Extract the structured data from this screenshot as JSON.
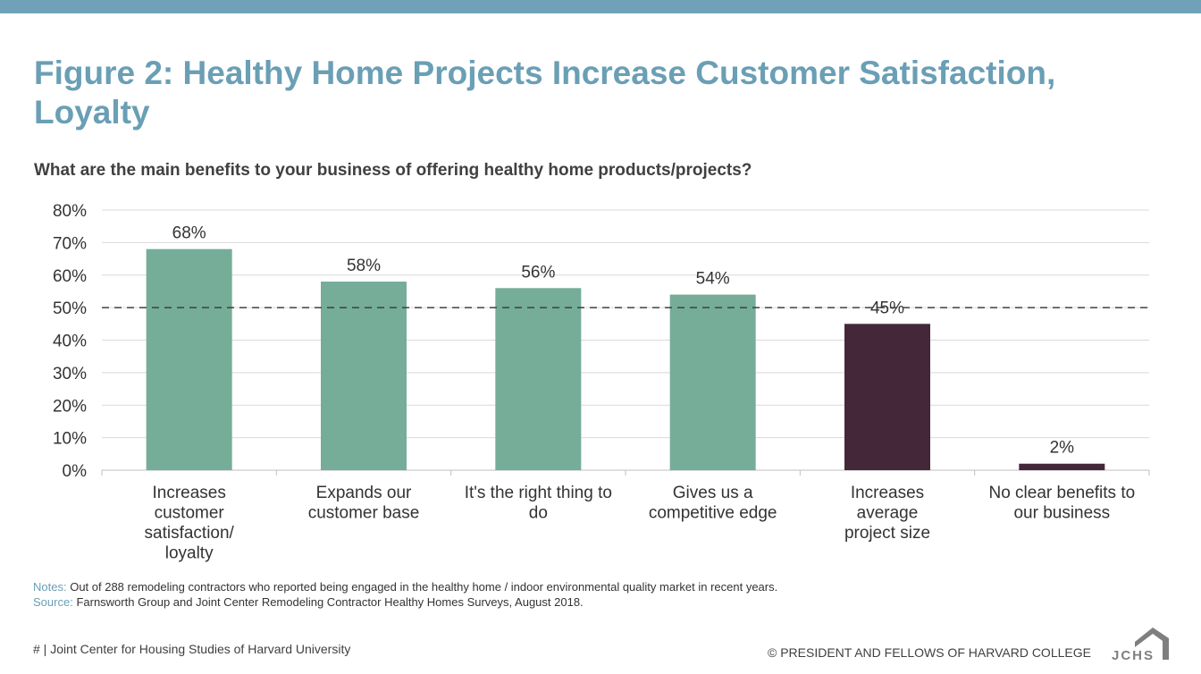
{
  "header": {
    "title": "Figure 2: Healthy Home Projects Increase Customer Satisfaction, Loyalty",
    "subtitle": "What are the main benefits to your business of offering healthy home products/projects?"
  },
  "notes": {
    "notes_label": "Notes:",
    "notes_text": "Out of 288 remodeling contractors who reported being engaged in the healthy home / indoor environmental quality market in recent years.",
    "source_label": "Source:",
    "source_text": "Farnsworth Group and Joint Center Remodeling Contractor Healthy Homes Surveys, August 2018."
  },
  "footer": {
    "left": "# | Joint Center for Housing Studies of Harvard University",
    "right": "© PRESIDENT AND FELLOWS OF HARVARD COLLEGE",
    "logo_text": "JCHS"
  },
  "colors": {
    "accent": "#6a9fb5",
    "bar_green": "#75ad98",
    "bar_dark": "#44283a"
  },
  "chart_data": {
    "type": "bar",
    "categories": [
      [
        "Increases",
        "customer",
        "satisfaction/",
        "loyalty"
      ],
      [
        "Expands our",
        "customer base"
      ],
      [
        "It's the right thing to",
        "do"
      ],
      [
        "Gives us a",
        "competitive edge"
      ],
      [
        "Increases",
        "average",
        "project size"
      ],
      [
        "No clear benefits to",
        "our business"
      ]
    ],
    "values": [
      68,
      58,
      56,
      54,
      45,
      2
    ],
    "data_labels": [
      "68%",
      "58%",
      "56%",
      "54%",
      "45%",
      "2%"
    ],
    "bar_colors": [
      "#75ad98",
      "#75ad98",
      "#75ad98",
      "#75ad98",
      "#44283a",
      "#44283a"
    ],
    "ylim": [
      0,
      80
    ],
    "yticks": [
      0,
      10,
      20,
      30,
      40,
      50,
      60,
      70,
      80
    ],
    "ytick_labels": [
      "0%",
      "10%",
      "20%",
      "30%",
      "40%",
      "50%",
      "60%",
      "70%",
      "80%"
    ],
    "reference_line": 50,
    "grid": true
  }
}
